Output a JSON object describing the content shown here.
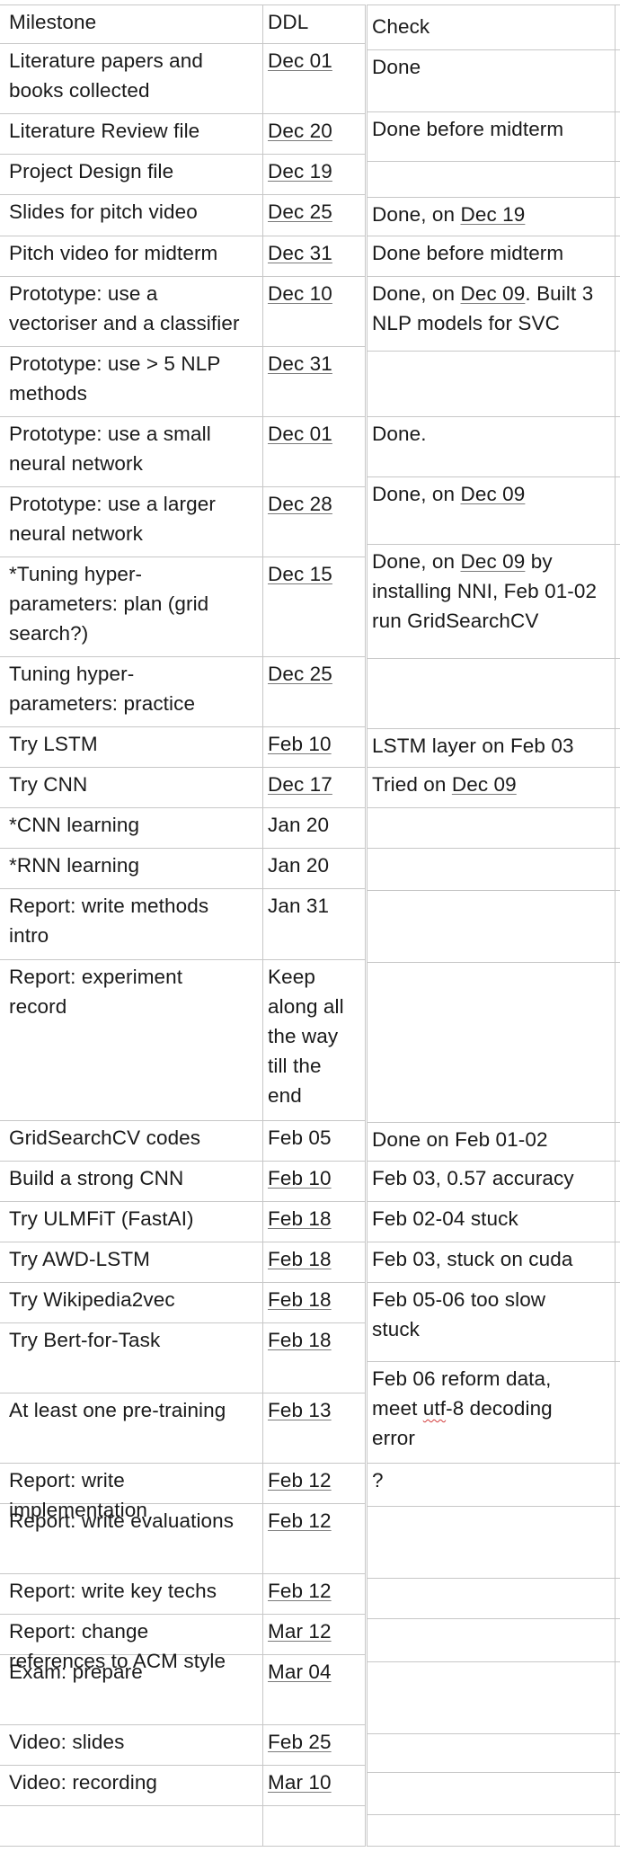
{
  "header": {
    "milestone": "Milestone",
    "ddl": "DDL",
    "check": "Check"
  },
  "rows": [
    {
      "milestone": "Literature papers and\nbooks collected",
      "ddl": "Dec 01",
      "ddl_underlined": true,
      "check": [
        {
          "t": "Done"
        }
      ]
    },
    {
      "milestone": "Literature Review file",
      "ddl": "Dec 20",
      "ddl_underlined": true,
      "check": [
        {
          "t": "Done before midterm"
        }
      ]
    },
    {
      "milestone": "Project Design file",
      "ddl": "Dec 19",
      "ddl_underlined": true,
      "check": []
    },
    {
      "milestone": "Slides for pitch video",
      "ddl": "Dec 25",
      "ddl_underlined": true,
      "check": [
        {
          "t": "Done, on "
        },
        {
          "t": "Dec 19",
          "u": true
        }
      ]
    },
    {
      "milestone": "Pitch video for midterm",
      "ddl": "Dec 31",
      "ddl_underlined": true,
      "check": [
        {
          "t": "Done before midterm"
        }
      ]
    },
    {
      "milestone": "Prototype: use a\nvectoriser and a classifier",
      "ddl": "Dec 10",
      "ddl_underlined": true,
      "check": [
        {
          "t": "Done, on "
        },
        {
          "t": "Dec 09",
          "u": true
        },
        {
          "t": ". Built 3\nNLP models for SVC"
        }
      ]
    },
    {
      "milestone": "Prototype: use > 5 NLP\nmethods",
      "ddl": "Dec 31",
      "ddl_underlined": true,
      "check": []
    },
    {
      "milestone": "Prototype: use a small\nneural network",
      "ddl": "Dec 01",
      "ddl_underlined": true,
      "check": [
        {
          "t": "Done."
        }
      ]
    },
    {
      "milestone": "Prototype: use a larger\nneural network",
      "ddl": "Dec 28",
      "ddl_underlined": true,
      "check": [
        {
          "t": "Done, on "
        },
        {
          "t": "Dec 09",
          "u": true
        }
      ]
    },
    {
      "milestone": "*Tuning hyper-\nparameters: plan (grid\nsearch?)",
      "ddl": "Dec 15",
      "ddl_underlined": true,
      "check": [
        {
          "t": "Done, on "
        },
        {
          "t": "Dec 09",
          "u": true
        },
        {
          "t": " by\ninstalling NNI, Feb 01-02\nrun GridSearchCV"
        }
      ]
    },
    {
      "milestone": "Tuning hyper-\nparameters: practice",
      "ddl": "Dec 25",
      "ddl_underlined": true,
      "check": []
    },
    {
      "milestone": "Try LSTM",
      "ddl": "Feb 10",
      "ddl_underlined": true,
      "check": [
        {
          "t": "LSTM layer on Feb 03"
        }
      ]
    },
    {
      "milestone": "Try CNN",
      "ddl": "Dec 17",
      "ddl_underlined": true,
      "check": [
        {
          "t": "Tried on "
        },
        {
          "t": "Dec 09",
          "u": true
        }
      ]
    },
    {
      "milestone": "*CNN learning",
      "ddl": "Jan 20",
      "ddl_underlined": false,
      "check": []
    },
    {
      "milestone": "*RNN learning",
      "ddl": "Jan 20",
      "ddl_underlined": false,
      "check": []
    },
    {
      "milestone": "Report: write methods\nintro",
      "ddl": "Jan 31",
      "ddl_underlined": false,
      "check": []
    },
    {
      "milestone": "Report: experiment\nrecord",
      "ddl": "Keep\nalong all\nthe way\ntill the\nend",
      "ddl_underlined": false,
      "check": []
    },
    {
      "milestone": "GridSearchCV codes",
      "ddl": "Feb 05",
      "ddl_underlined": false,
      "check": [
        {
          "t": "Done on Feb 01-02"
        }
      ]
    },
    {
      "milestone": "Build a strong CNN",
      "ddl": "Feb 10",
      "ddl_underlined": true,
      "check": [
        {
          "t": "Feb 03, 0.57 accuracy"
        }
      ]
    },
    {
      "milestone": "Try ULMFiT (FastAI)",
      "ddl": "Feb 18",
      "ddl_underlined": true,
      "check": [
        {
          "t": "Feb 02-04 stuck"
        }
      ]
    },
    {
      "milestone": "Try AWD-LSTM",
      "ddl": "Feb 18",
      "ddl_underlined": true,
      "check": [
        {
          "t": "Feb 03, stuck on cuda"
        }
      ]
    },
    {
      "milestone": "Try Wikipedia2vec",
      "ddl": "Feb 18",
      "ddl_underlined": true,
      "check": [
        {
          "t": "Feb 05-06 too slow\nstuck"
        }
      ]
    },
    {
      "milestone": "Try Bert-for-Task",
      "ddl": "Feb 18",
      "ddl_underlined": true,
      "check": [
        {
          "t": "Feb 06 reform data,\nmeet "
        },
        {
          "t": "utf",
          "w": true
        },
        {
          "t": "-8 decoding\nerror"
        }
      ]
    },
    {
      "milestone": "At least one pre-training",
      "ddl": "Feb 13",
      "ddl_underlined": true,
      "check": [
        {
          "t": "?"
        }
      ]
    },
    {
      "milestone": "Report: write\nimplementation",
      "ddl": "Feb 12",
      "ddl_underlined": true,
      "check": []
    },
    {
      "milestone": "Report: write evaluations",
      "ddl": "Feb 12",
      "ddl_underlined": true,
      "check": []
    },
    {
      "milestone": "Report: write key techs",
      "ddl": "Feb 12",
      "ddl_underlined": true,
      "check": []
    },
    {
      "milestone": "Report: change\nreferences to ACM style",
      "ddl": "Mar 12",
      "ddl_underlined": true,
      "check": []
    },
    {
      "milestone": "Exam: prepare",
      "ddl": "Mar 04",
      "ddl_underlined": true,
      "check": []
    },
    {
      "milestone": "Video: slides",
      "ddl": "Feb 25",
      "ddl_underlined": true,
      "check": []
    },
    {
      "milestone": "Video: recording",
      "ddl": "Mar 10",
      "ddl_underlined": true,
      "check": []
    }
  ]
}
